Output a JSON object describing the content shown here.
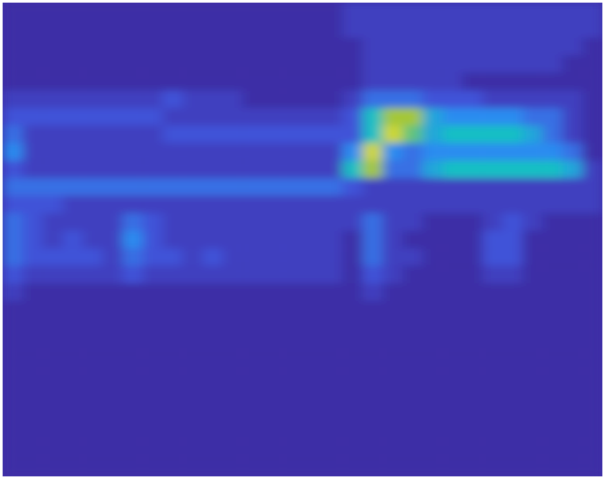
{
  "chart_data": {
    "type": "heatmap",
    "tick_labels": false,
    "zlim": [
      0,
      10
    ],
    "z": [
      [
        0,
        0,
        0,
        0,
        0,
        0,
        0,
        0,
        0,
        0,
        0,
        0,
        0,
        0,
        0,
        0,
        0,
        1,
        1,
        1,
        1,
        1,
        1,
        1,
        1,
        1,
        1,
        1,
        1,
        1
      ],
      [
        0,
        0,
        0,
        0,
        0,
        0,
        0,
        0,
        0,
        0,
        0,
        0,
        0,
        0,
        0,
        0,
        0,
        1,
        1,
        1,
        1,
        1,
        1,
        1,
        1,
        1,
        1,
        1,
        1,
        1
      ],
      [
        0,
        0,
        0,
        0,
        0,
        0,
        0,
        0,
        0,
        0,
        0,
        0,
        0,
        0,
        0,
        0,
        0,
        0,
        1,
        1,
        1,
        1,
        1,
        1,
        1,
        1,
        1,
        1,
        1,
        0
      ],
      [
        0,
        0,
        0,
        0,
        0,
        0,
        0,
        0,
        0,
        0,
        0,
        0,
        0,
        0,
        0,
        0,
        0,
        0,
        1,
        1,
        1,
        1,
        1,
        1,
        1,
        1,
        1,
        1,
        0,
        0
      ],
      [
        0,
        0,
        0,
        0,
        0,
        0,
        0,
        0,
        0,
        0,
        0,
        0,
        0,
        0,
        0,
        0,
        0,
        0,
        1,
        1,
        1,
        1,
        1,
        0,
        0,
        0,
        0,
        0,
        0,
        0
      ],
      [
        1,
        1,
        1,
        1,
        1,
        1,
        1,
        1,
        2,
        1,
        1,
        1,
        0,
        0,
        0,
        0,
        0,
        1,
        3,
        3,
        3,
        2,
        2,
        2,
        1,
        1,
        1,
        1,
        1,
        0
      ],
      [
        2,
        2,
        2,
        2,
        2,
        2,
        2,
        2,
        1,
        1,
        1,
        1,
        1,
        1,
        1,
        1,
        1,
        2,
        6,
        8,
        8,
        5,
        4,
        4,
        4,
        4,
        3,
        3,
        1,
        0
      ],
      [
        3,
        1,
        1,
        1,
        1,
        1,
        1,
        1,
        2,
        2,
        2,
        2,
        2,
        2,
        2,
        2,
        2,
        2,
        6,
        9,
        7,
        5,
        6,
        6,
        6,
        6,
        5,
        3,
        1,
        0
      ],
      [
        4,
        1,
        1,
        1,
        1,
        1,
        1,
        1,
        1,
        1,
        1,
        1,
        1,
        1,
        1,
        1,
        1,
        4,
        9,
        4,
        3,
        4,
        4,
        4,
        4,
        4,
        4,
        4,
        3,
        0
      ],
      [
        2,
        1,
        1,
        1,
        1,
        1,
        1,
        1,
        1,
        1,
        1,
        1,
        1,
        1,
        1,
        1,
        1,
        6,
        8,
        3,
        3,
        5,
        6,
        6,
        6,
        6,
        6,
        6,
        5,
        1
      ],
      [
        3,
        3,
        3,
        3,
        3,
        3,
        3,
        3,
        3,
        3,
        3,
        3,
        3,
        3,
        3,
        3,
        3,
        2,
        1,
        1,
        1,
        1,
        1,
        1,
        1,
        1,
        1,
        1,
        1,
        1
      ],
      [
        2,
        2,
        2,
        1,
        1,
        1,
        1,
        1,
        1,
        1,
        1,
        1,
        1,
        1,
        1,
        1,
        1,
        1,
        1,
        1,
        1,
        1,
        1,
        1,
        1,
        1,
        1,
        1,
        1,
        1
      ],
      [
        3,
        2,
        1,
        1,
        1,
        1,
        3,
        2,
        1,
        1,
        1,
        1,
        1,
        1,
        1,
        1,
        1,
        1,
        3,
        1,
        1,
        0,
        0,
        0,
        1,
        2,
        1,
        0,
        0,
        0
      ],
      [
        3,
        2,
        1,
        2,
        1,
        1,
        4,
        2,
        1,
        1,
        1,
        1,
        1,
        1,
        1,
        1,
        1,
        0,
        3,
        1,
        0,
        0,
        0,
        0,
        2,
        2,
        0,
        0,
        0,
        0
      ],
      [
        3,
        2,
        2,
        2,
        2,
        1,
        3,
        2,
        2,
        1,
        2,
        1,
        1,
        1,
        1,
        1,
        1,
        0,
        3,
        1,
        1,
        0,
        0,
        0,
        2,
        2,
        0,
        0,
        0,
        0
      ],
      [
        2,
        1,
        1,
        1,
        1,
        1,
        2,
        1,
        1,
        1,
        1,
        1,
        1,
        1,
        1,
        1,
        1,
        0,
        2,
        1,
        0,
        0,
        0,
        0,
        1,
        1,
        0,
        0,
        0,
        0
      ],
      [
        1,
        0,
        0,
        0,
        0,
        0,
        0,
        0,
        0,
        0,
        0,
        0,
        0,
        0,
        0,
        0,
        0,
        0,
        1,
        0,
        0,
        0,
        0,
        0,
        0,
        0,
        0,
        0,
        0,
        0
      ],
      [
        0,
        0,
        0,
        0,
        0,
        0,
        0,
        0,
        0,
        0,
        0,
        0,
        0,
        0,
        0,
        0,
        0,
        0,
        0,
        0,
        0,
        0,
        0,
        0,
        0,
        0,
        0,
        0,
        0,
        0
      ],
      [
        0,
        0,
        0,
        0,
        0,
        0,
        0,
        0,
        0,
        0,
        0,
        0,
        0,
        0,
        0,
        0,
        0,
        0,
        0,
        0,
        0,
        0,
        0,
        0,
        0,
        0,
        0,
        0,
        0,
        0
      ],
      [
        0,
        0,
        0,
        0,
        0,
        0,
        0,
        0,
        0,
        0,
        0,
        0,
        0,
        0,
        0,
        0,
        0,
        0,
        0,
        0,
        0,
        0,
        0,
        0,
        0,
        0,
        0,
        0,
        0,
        0
      ],
      [
        0,
        0,
        0,
        0,
        0,
        0,
        0,
        0,
        0,
        0,
        0,
        0,
        0,
        0,
        0,
        0,
        0,
        0,
        0,
        0,
        0,
        0,
        0,
        0,
        0,
        0,
        0,
        0,
        0,
        0
      ],
      [
        0,
        0,
        0,
        0,
        0,
        0,
        0,
        0,
        0,
        0,
        0,
        0,
        0,
        0,
        0,
        0,
        0,
        0,
        0,
        0,
        0,
        0,
        0,
        0,
        0,
        0,
        0,
        0,
        0,
        0
      ],
      [
        0,
        0,
        0,
        0,
        0,
        0,
        0,
        0,
        0,
        0,
        0,
        0,
        0,
        0,
        0,
        0,
        0,
        0,
        0,
        0,
        0,
        0,
        0,
        0,
        0,
        0,
        0,
        0,
        0,
        0
      ],
      [
        0,
        0,
        0,
        0,
        0,
        0,
        0,
        0,
        0,
        0,
        0,
        0,
        0,
        0,
        0,
        0,
        0,
        0,
        0,
        0,
        0,
        0,
        0,
        0,
        0,
        0,
        0,
        0,
        0,
        0
      ],
      [
        0,
        0,
        0,
        0,
        0,
        0,
        0,
        0,
        0,
        0,
        0,
        0,
        0,
        0,
        0,
        0,
        0,
        0,
        0,
        0,
        0,
        0,
        0,
        0,
        0,
        0,
        0,
        0,
        0,
        0
      ],
      [
        0,
        0,
        0,
        0,
        0,
        0,
        0,
        0,
        0,
        0,
        0,
        0,
        0,
        0,
        0,
        0,
        0,
        0,
        0,
        0,
        0,
        0,
        0,
        0,
        0,
        0,
        0,
        0,
        0,
        0
      ],
      [
        0,
        0,
        0,
        0,
        0,
        0,
        0,
        0,
        0,
        0,
        0,
        0,
        0,
        0,
        0,
        0,
        0,
        0,
        0,
        0,
        0,
        0,
        0,
        0,
        0,
        0,
        0,
        0,
        0,
        0
      ]
    ]
  }
}
